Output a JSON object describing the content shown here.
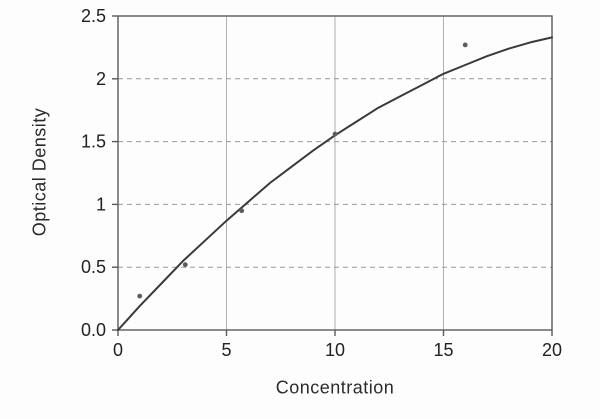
{
  "figure": {
    "background": "#fdfdfd",
    "frame_color": "#5a5a5a",
    "grid_color_dashed": "#9a9a9a",
    "grid_color_solid": "#b0b0b0",
    "tick_text_color": "#222222"
  },
  "chart_data": {
    "type": "line",
    "title": "",
    "xlabel": "Concentration",
    "ylabel": "Optical Density",
    "xlim": [
      0,
      20
    ],
    "ylim": [
      0,
      2.5
    ],
    "x_ticks": [
      0,
      5,
      10,
      15,
      20
    ],
    "x_tick_labels": [
      "0",
      "5",
      "10",
      "15",
      "20"
    ],
    "y_ticks": [
      0,
      0.5,
      1,
      1.5,
      2,
      2.5
    ],
    "y_tick_labels": [
      "0.0",
      "0.5",
      "1",
      "1.5",
      "2",
      "2.5"
    ],
    "grid": {
      "horizontal": "dashed",
      "vertical": "solid"
    },
    "legend": null,
    "series": [
      {
        "name": "fitted-curve",
        "type": "line",
        "color": "#3a3a3a",
        "width": 2,
        "x": [
          0,
          1,
          2,
          3,
          4,
          5,
          6,
          7,
          8,
          9,
          10,
          11,
          12,
          13,
          14,
          15,
          16,
          17,
          18,
          19,
          20
        ],
        "y": [
          0,
          0.19,
          0.37,
          0.55,
          0.71,
          0.87,
          1.02,
          1.17,
          1.3,
          1.43,
          1.55,
          1.66,
          1.77,
          1.86,
          1.95,
          2.04,
          2.11,
          2.18,
          2.24,
          2.29,
          2.33
        ]
      },
      {
        "name": "measured-points",
        "type": "scatter",
        "color": "#5c5c5c",
        "points": [
          [
            1.0,
            0.27
          ],
          [
            3.1,
            0.52
          ],
          [
            5.7,
            0.95
          ],
          [
            10.0,
            1.56
          ],
          [
            16.0,
            2.27
          ]
        ]
      }
    ]
  }
}
